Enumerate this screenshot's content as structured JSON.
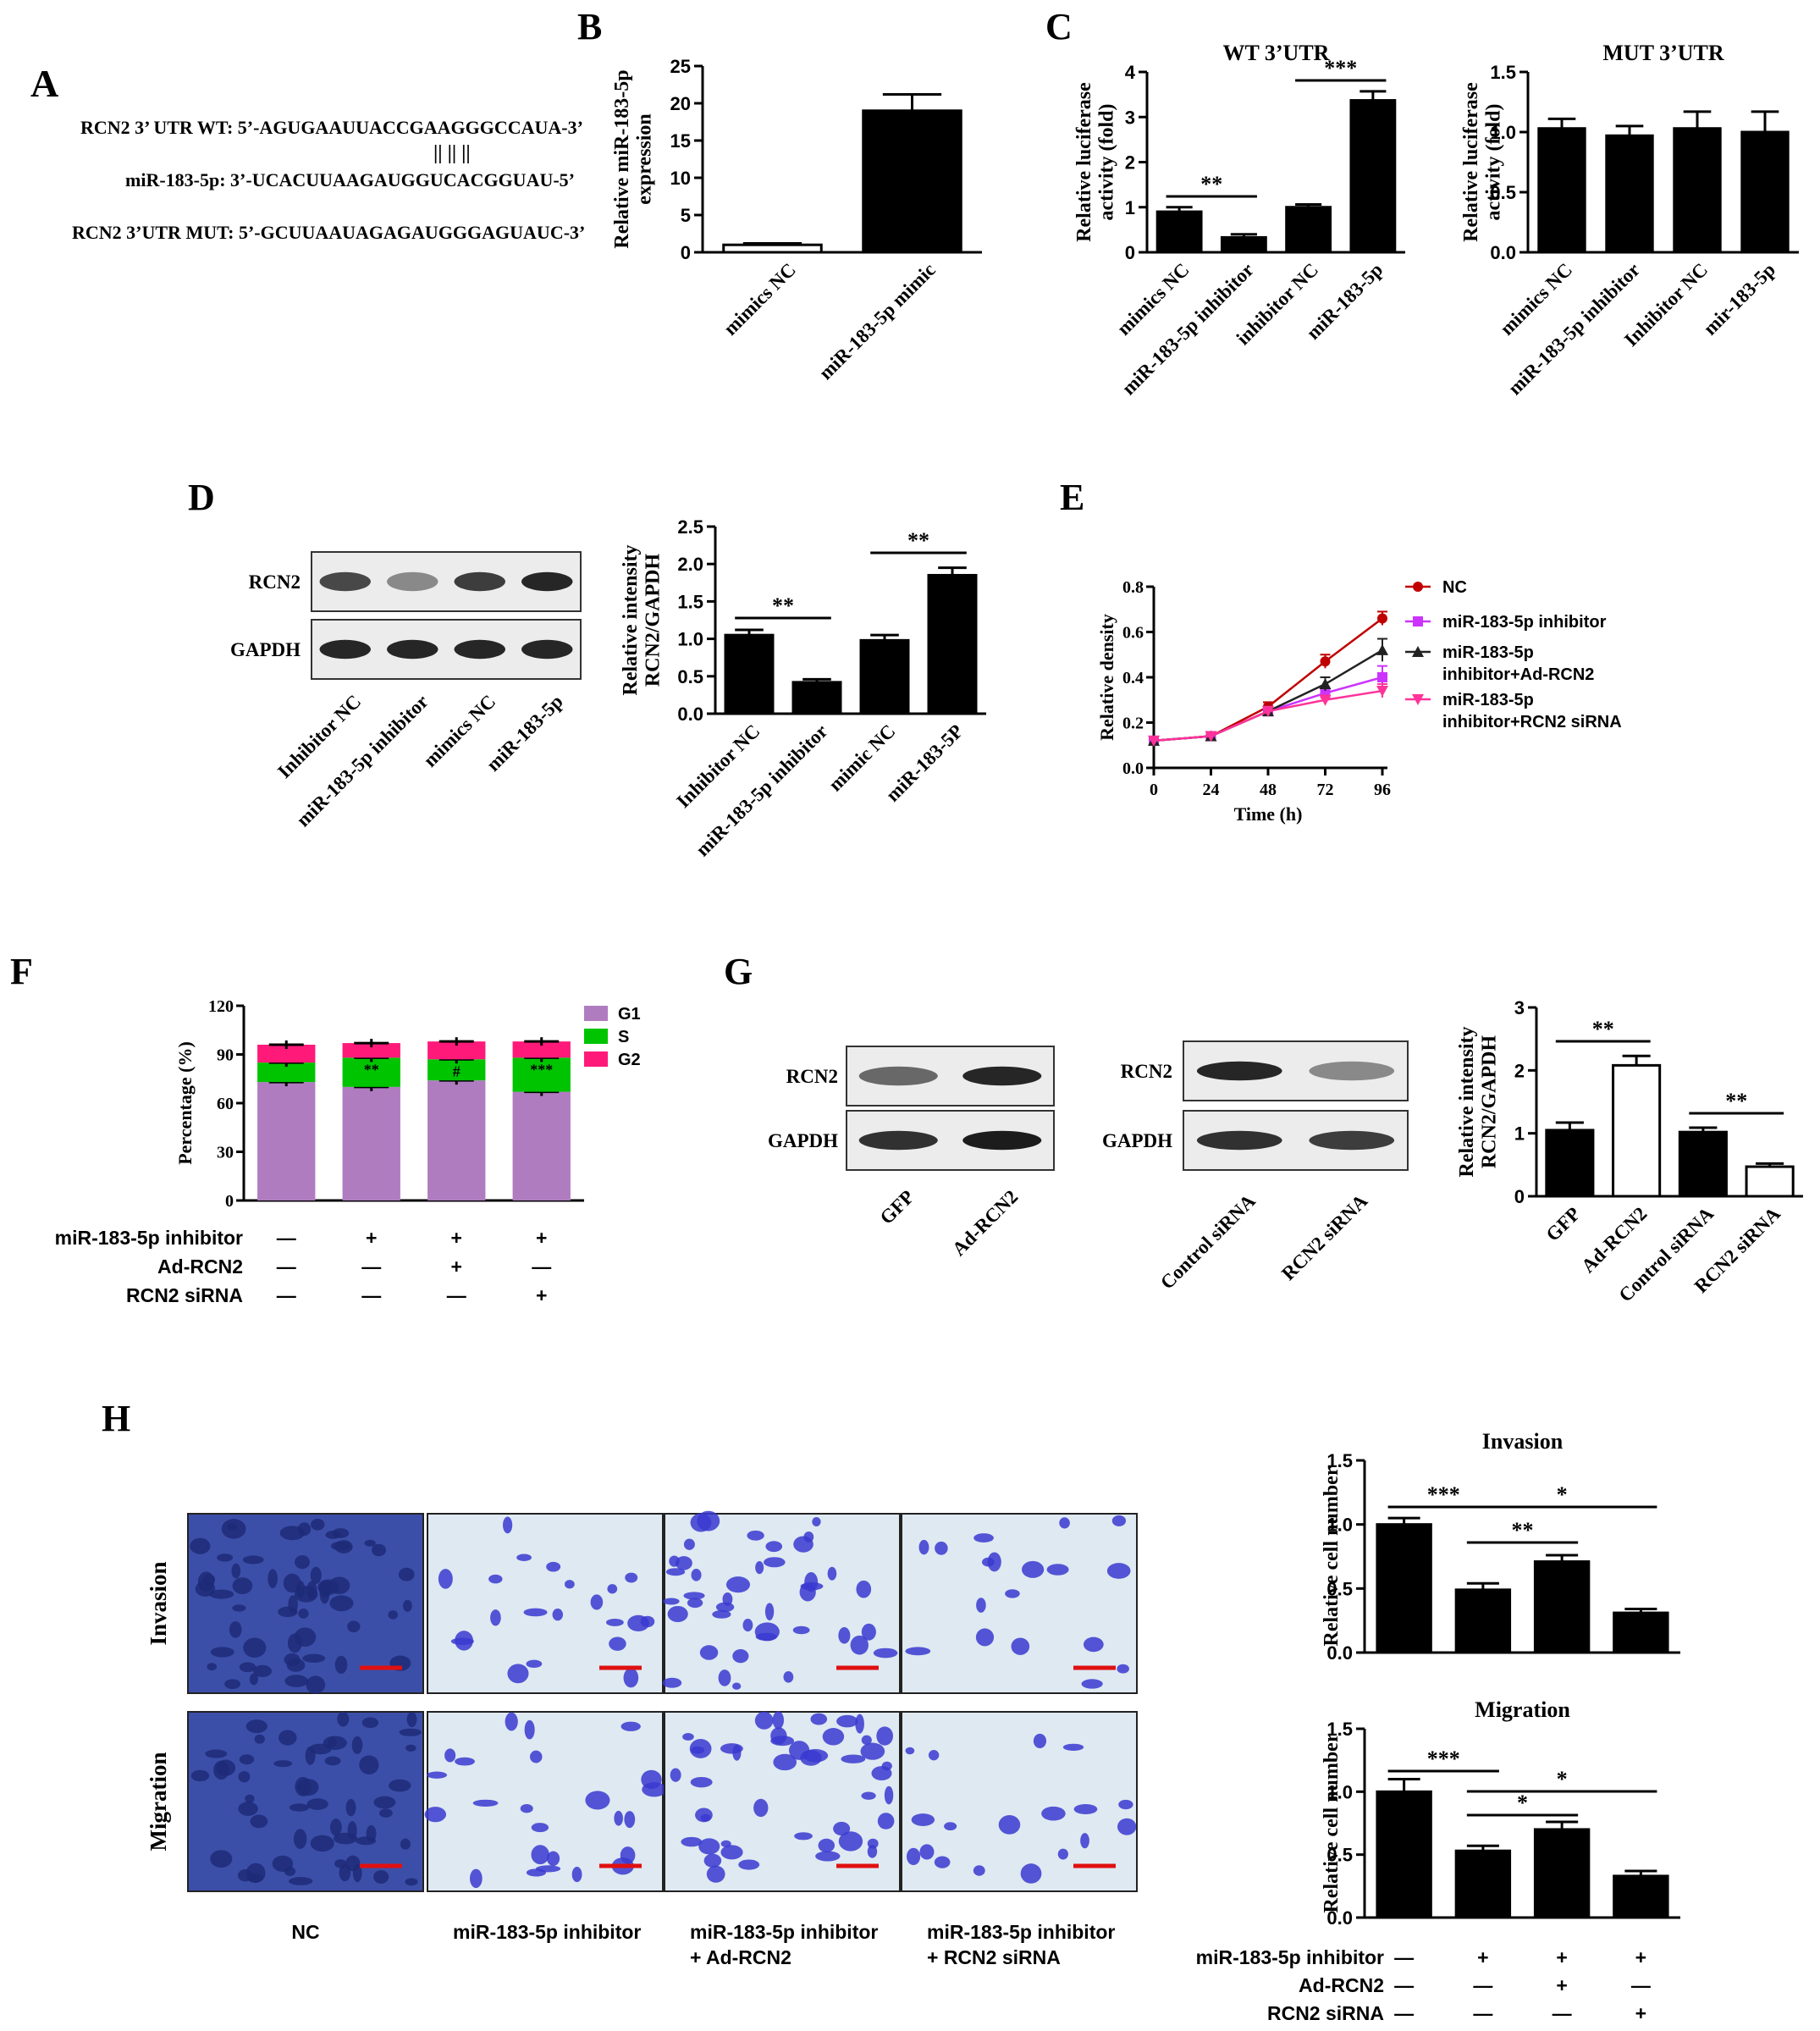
{
  "panel_labels": {
    "A": "A",
    "B": "B",
    "C": "C",
    "D": "D",
    "E": "E",
    "F": "F",
    "G": "G",
    "H": "H"
  },
  "panel_a": {
    "wt": "RCN2 3’ UTR WT:  5’-AGUGAAUUACCGAAGGGCCAUA-3’",
    "mir": "miR-183-5p:  3’-UCACUUAAGAUGGUCACGGUAU-5’",
    "mut": "RCN2 3’UTR MUT: 5’-GCUUAAUAGAGAUGGGAGUAUC-3’",
    "pairing": "|| || ||"
  },
  "panel_h": {
    "row_labels": [
      "Invasion",
      "Migration"
    ],
    "col_labels": [
      "NC",
      "miR-183-5p inhibitor",
      "miR-183-5p inhibitor\n+ Ad-RCN2",
      "miR-183-5p inhibitor\n+ RCN2 siRNA"
    ],
    "colors": {
      "stain": "#3a3ad0",
      "background": "#dfe9f2",
      "scalebar": "#e01010"
    }
  },
  "panel_d_blot": {
    "rows": [
      "RCN2",
      "GAPDH"
    ],
    "lanes": [
      "Inhibitor NC",
      "miR-183-5p inhibitor",
      "mimics NC",
      "miR-183-5p"
    ]
  },
  "panel_g_blots": [
    {
      "rows": [
        "RCN2",
        "GAPDH"
      ],
      "lanes": [
        "GFP",
        "Ad-RCN2"
      ]
    },
    {
      "rows": [
        "RCN2",
        "GAPDH"
      ],
      "lanes": [
        "Control siRNA",
        "RCN2 siRNA"
      ]
    }
  ],
  "chart_data": [
    {
      "id": "B",
      "type": "bar",
      "title": "",
      "ylabel": "Relative miR-183-5p\nexpression",
      "categories": [
        "mimics NC",
        "miR-183-5p mimic"
      ],
      "values": [
        1.0,
        19.0
      ],
      "errors": [
        0.2,
        2.2
      ],
      "fills": [
        "#ffffff",
        "#000000"
      ],
      "ylim": [
        0,
        25
      ],
      "yticks": [
        0,
        5,
        10,
        15,
        20,
        25
      ]
    },
    {
      "id": "C1",
      "type": "bar",
      "title": "WT 3’UTR",
      "ylabel": "Relative luciferase\nactivity (fold)",
      "categories": [
        "mimics NC",
        "miR-183-5p inhibitor",
        "inhibitor NC",
        "miR-183-5p"
      ],
      "values": [
        0.9,
        0.33,
        1.0,
        3.37
      ],
      "errors": [
        0.1,
        0.07,
        0.06,
        0.2
      ],
      "ylim": [
        0,
        4
      ],
      "yticks": [
        0,
        1,
        2,
        3,
        4
      ],
      "sig": [
        {
          "from": 0,
          "to": 1,
          "label": "**"
        },
        {
          "from": 2,
          "to": 3,
          "label": "***"
        }
      ]
    },
    {
      "id": "C2",
      "type": "bar",
      "title": "MUT 3’UTR",
      "ylabel": "Relative luciferase\nactivity (fold)",
      "categories": [
        "mimics NC",
        "miR-183-5p inhibitor",
        "Inhibitor NC",
        "mir-183-5p"
      ],
      "values": [
        1.03,
        0.97,
        1.03,
        1.0
      ],
      "errors": [
        0.08,
        0.08,
        0.14,
        0.17
      ],
      "ylim": [
        0,
        1.5
      ],
      "yticks": [
        "0.0",
        "0.5",
        "1.0",
        "1.5"
      ]
    },
    {
      "id": "D",
      "type": "bar",
      "title": "",
      "ylabel": "Relative intensity\nRCN2/GAPDH",
      "categories": [
        "Inhibitor NC",
        "miR-183-5p inhibitor",
        "mimic NC",
        "miR-183-5P"
      ],
      "values": [
        1.05,
        0.42,
        0.98,
        1.85
      ],
      "errors": [
        0.07,
        0.04,
        0.07,
        0.1
      ],
      "ylim": [
        0,
        2.5
      ],
      "yticks": [
        "0.0",
        "0.5",
        "1.0",
        "1.5",
        "2.0",
        "2.5"
      ],
      "sig": [
        {
          "from": 0,
          "to": 1,
          "label": "**"
        },
        {
          "from": 2,
          "to": 3,
          "label": "**"
        }
      ]
    },
    {
      "id": "E",
      "type": "line",
      "title": "",
      "xlabel": "Time (h)",
      "ylabel": "Relative density",
      "x": [
        0,
        24,
        48,
        72,
        96
      ],
      "xticks": [
        0,
        24,
        48,
        72,
        96
      ],
      "ylim": [
        0,
        0.8
      ],
      "yticks": [
        "0.0",
        "0.2",
        "0.4",
        "0.6",
        "0.8"
      ],
      "series": [
        {
          "name": "NC",
          "values": [
            0.12,
            0.14,
            0.27,
            0.47,
            0.66
          ],
          "errors": [
            0.01,
            0.01,
            0.02,
            0.03,
            0.03
          ],
          "color": "#c00000",
          "marker": "circle"
        },
        {
          "name": "miR-183-5p inhibitor",
          "values": [
            0.12,
            0.14,
            0.25,
            0.33,
            0.4
          ],
          "errors": [
            0.01,
            0.01,
            0.02,
            0.02,
            0.05
          ],
          "color": "#cc33ff",
          "marker": "square"
        },
        {
          "name": "miR-183-5p\ninhibitor+Ad-RCN2",
          "values": [
            0.12,
            0.14,
            0.25,
            0.37,
            0.52
          ],
          "errors": [
            0.01,
            0.01,
            0.02,
            0.03,
            0.05
          ],
          "color": "#222222",
          "marker": "triangle"
        },
        {
          "name": "miR-183-5p\ninhibitor+RCN2 siRNA",
          "values": [
            0.12,
            0.14,
            0.25,
            0.3,
            0.34
          ],
          "errors": [
            0.01,
            0.01,
            0.02,
            0.02,
            0.03
          ],
          "color": "#ff3399",
          "marker": "triangle-down"
        }
      ]
    },
    {
      "id": "F",
      "type": "bar",
      "stacked": true,
      "title": "",
      "ylabel": "Percentage (%)",
      "ylim": [
        0,
        120
      ],
      "yticks": [
        0,
        30,
        60,
        90,
        120
      ],
      "categories": [
        "1",
        "2",
        "3",
        "4"
      ],
      "series": [
        {
          "name": "G1",
          "values": [
            73,
            70,
            74,
            67
          ],
          "color": "#b07cc0"
        },
        {
          "name": "S",
          "values": [
            12,
            18,
            13,
            21
          ],
          "color": "#00c400"
        },
        {
          "name": "G2",
          "values": [
            11,
            9,
            11,
            10
          ],
          "color": "#ff1a7a"
        }
      ],
      "group_rows": [
        {
          "label": "miR-183-5p inhibitor",
          "values": [
            "—",
            "+",
            "+",
            "+"
          ]
        },
        {
          "label": "Ad-RCN2",
          "values": [
            "—",
            "—",
            "+",
            "—"
          ]
        },
        {
          "label": "RCN2 siRNA",
          "values": [
            "—",
            "—",
            "—",
            "+"
          ]
        }
      ],
      "annotations": [
        "**",
        "#",
        "***"
      ]
    },
    {
      "id": "G",
      "type": "bar",
      "title": "",
      "ylabel": "Relative intensity\nRCN2/GAPDH",
      "categories": [
        "GFP",
        "Ad-RCN2",
        "Control siRNA",
        "RCN2 siRNA"
      ],
      "values": [
        1.05,
        2.08,
        1.02,
        0.47
      ],
      "errors": [
        0.12,
        0.15,
        0.07,
        0.05
      ],
      "fills": [
        "#000000",
        "#ffffff",
        "#000000",
        "#ffffff"
      ],
      "ylim": [
        0,
        3
      ],
      "yticks": [
        0,
        1,
        2,
        3
      ],
      "sig": [
        {
          "from": 0,
          "to": 1,
          "label": "**"
        },
        {
          "from": 2,
          "to": 3,
          "label": "**"
        }
      ]
    },
    {
      "id": "H1",
      "type": "bar",
      "title": "Invasion",
      "ylabel": "Relative cell number",
      "categories": [
        "1",
        "2",
        "3",
        "4"
      ],
      "values": [
        1.0,
        0.49,
        0.71,
        0.31
      ],
      "errors": [
        0.05,
        0.05,
        0.05,
        0.03
      ],
      "ylim": [
        0,
        1.5
      ],
      "yticks": [
        "0.0",
        "0.5",
        "1.0",
        "1.5"
      ],
      "sig": [
        {
          "from": 0,
          "to": 1,
          "label": "***"
        },
        {
          "from": 1,
          "to": 2,
          "label": "**"
        },
        {
          "from": 1,
          "to": 3,
          "label": "*"
        }
      ]
    },
    {
      "id": "H2",
      "type": "bar",
      "title": "Migration",
      "ylabel": "Relative cell number",
      "categories": [
        "1",
        "2",
        "3",
        "4"
      ],
      "values": [
        1.0,
        0.53,
        0.7,
        0.33
      ],
      "errors": [
        0.1,
        0.04,
        0.06,
        0.04
      ],
      "ylim": [
        0,
        1.5
      ],
      "yticks": [
        "0.0",
        "0.5",
        "1.0",
        "1.5"
      ],
      "sig": [
        {
          "from": 0,
          "to": 1,
          "label": "***"
        },
        {
          "from": 1,
          "to": 2,
          "label": "*"
        },
        {
          "from": 1,
          "to": 3,
          "label": "*"
        }
      ],
      "group_rows": [
        {
          "label": "miR-183-5p inhibitor",
          "values": [
            "—",
            "+",
            "+",
            "+"
          ]
        },
        {
          "label": "Ad-RCN2",
          "values": [
            "—",
            "—",
            "+",
            "—"
          ]
        },
        {
          "label": "RCN2 siRNA",
          "values": [
            "—",
            "—",
            "—",
            "+"
          ]
        }
      ]
    }
  ]
}
